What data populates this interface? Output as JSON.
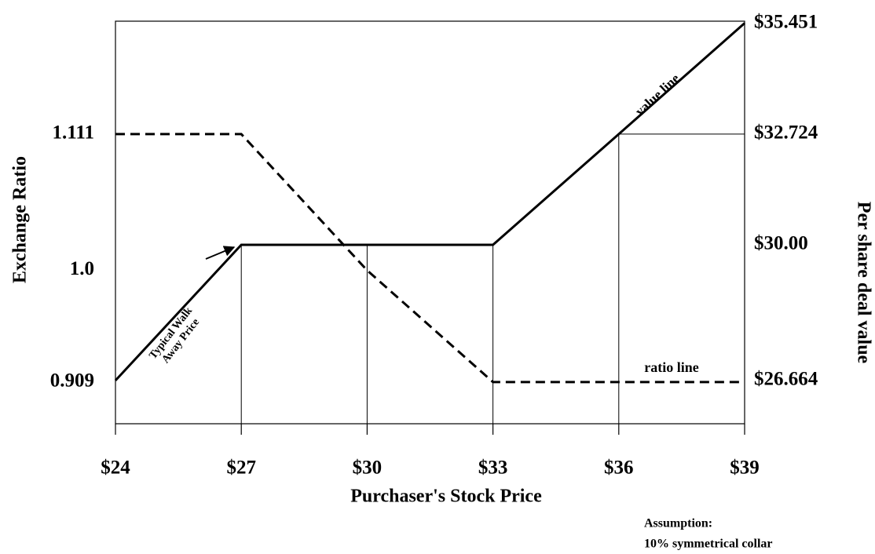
{
  "chart_data": {
    "type": "line",
    "xlabel": "Purchaser's Stock Price",
    "ylabel": "Exchange Ratio",
    "y2label": "Per share deal value",
    "xlim": [
      24,
      39
    ],
    "xticks": [
      {
        "value": 24,
        "label": "$24"
      },
      {
        "value": 27,
        "label": "$27"
      },
      {
        "value": 30,
        "label": "$30"
      },
      {
        "value": 33,
        "label": "$33"
      },
      {
        "value": 36,
        "label": "$36"
      },
      {
        "value": 39,
        "label": "$39"
      }
    ],
    "ylim": [
      0.875,
      1.203
    ],
    "yticks": [
      0.909,
      {
        "value": 1,
        "label": "1.0"
      },
      1.111
    ],
    "y2lim": [
      25.6,
      35.5
    ],
    "y2ticks": [
      {
        "value": 26.664,
        "label": "$26.664"
      },
      {
        "value": 30,
        "label": "$30.00"
      },
      {
        "value": 32.724,
        "label": "$32.724"
      },
      {
        "value": 35.451,
        "label": "$35.451"
      }
    ],
    "x": [
      24,
      27,
      30,
      33,
      36,
      39
    ],
    "series": [
      {
        "name": "value line",
        "color": "#000000",
        "line_style": "solid",
        "axis": "y2",
        "values": [
          26.664,
          30,
          30,
          30,
          32.724,
          35.451
        ]
      },
      {
        "name": "ratio line",
        "color": "#000000",
        "line_style": "dashed",
        "axis": "y",
        "values": [
          1.111,
          1.111,
          1,
          0.909,
          0.909,
          0.909
        ]
      }
    ],
    "annotations": {
      "walk_away": [
        "Typical Walk",
        "Away Price"
      ],
      "assumption": [
        "Assumption:",
        "10% symmetrical collar"
      ]
    }
  }
}
